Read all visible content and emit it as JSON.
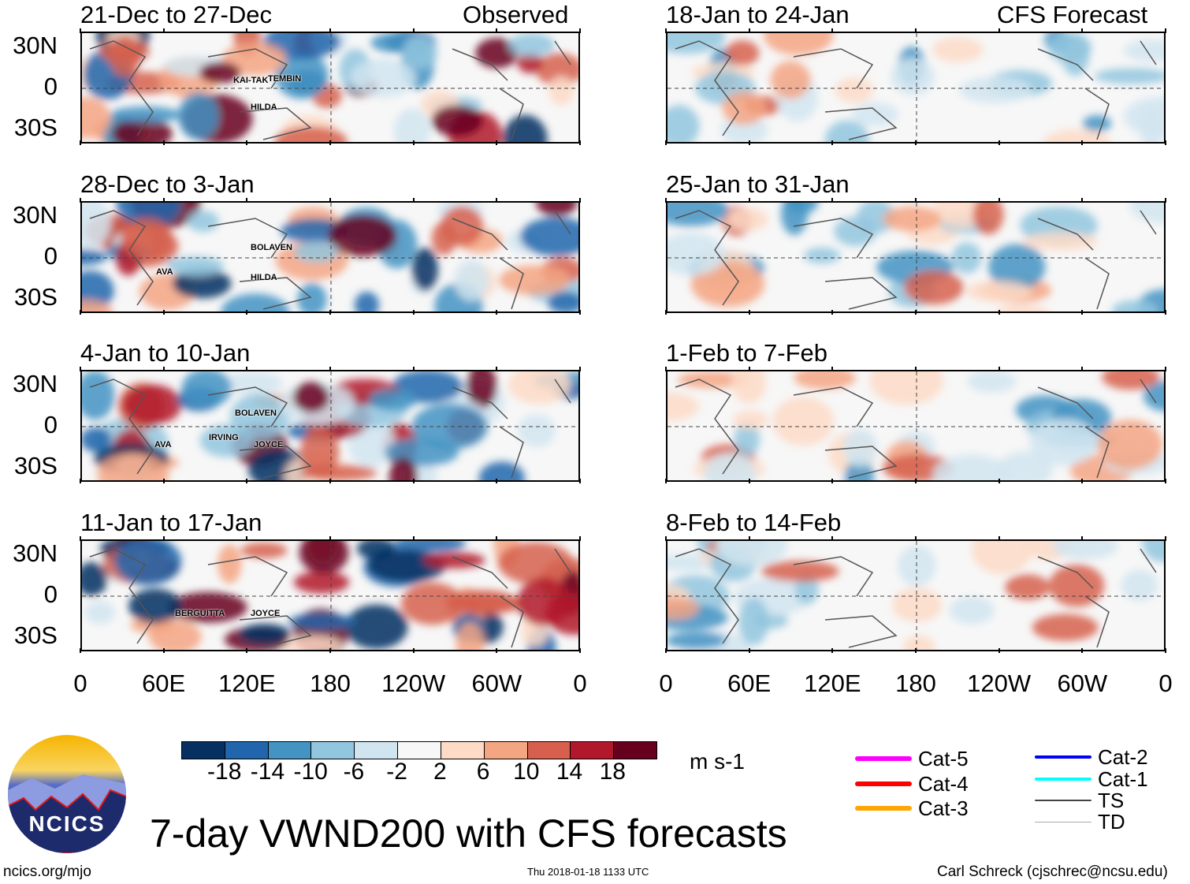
{
  "left_header": "Observed",
  "right_header": "CFS Forecast",
  "panels_left": [
    {
      "title": "21-Dec to 27-Dec",
      "storms": [
        "KAI-TAK",
        "TEMBIN",
        "HILDA"
      ]
    },
    {
      "title": "28-Dec to 3-Jan",
      "storms": [
        "BOLAVEN",
        "AVA",
        "HILDA"
      ]
    },
    {
      "title": "4-Jan to 10-Jan",
      "storms": [
        "BOLAVEN",
        "IRVING",
        "AVA",
        "JOYCE"
      ]
    },
    {
      "title": "11-Jan to 17-Jan",
      "storms": [
        "BERGUITTA",
        "JOYCE"
      ]
    }
  ],
  "panels_right": [
    {
      "title": "18-Jan to 24-Jan"
    },
    {
      "title": "25-Jan to 31-Jan"
    },
    {
      "title": "1-Feb to 7-Feb"
    },
    {
      "title": "8-Feb to 14-Feb"
    }
  ],
  "lat_labels": [
    "30N",
    "0",
    "30S"
  ],
  "lon_labels": [
    "0",
    "60E",
    "120E",
    "180",
    "120W",
    "60W",
    "0"
  ],
  "colorbar": {
    "labels": [
      "-18",
      "-14",
      "-10",
      "-6",
      "-2",
      "2",
      "6",
      "10",
      "14",
      "18"
    ],
    "colors": [
      "#053061",
      "#2166ac",
      "#4393c3",
      "#92c5de",
      "#d1e5f0",
      "#f7f7f7",
      "#fddbc7",
      "#f4a582",
      "#d6604d",
      "#b2182b",
      "#67001f"
    ],
    "units": "m s-1"
  },
  "legend": [
    {
      "label": "Cat-5",
      "color": "#ff00ff"
    },
    {
      "label": "Cat-4",
      "color": "#ff0000"
    },
    {
      "label": "Cat-3",
      "color": "#ffa500"
    },
    {
      "label": "Cat-2",
      "color": "#0000ff"
    },
    {
      "label": "Cat-1",
      "color": "#00ffff"
    },
    {
      "label": "TS",
      "color": "#444444"
    },
    {
      "label": "TD",
      "color": "#aaaaaa"
    }
  ],
  "title": "7-day VWND200 with CFS forecasts",
  "logo_text": "NCICS",
  "footer": {
    "url": "ncics.org/mjo",
    "timestamp": "Thu 2018-01-18 1133 UTC",
    "author": "Carl Schreck (cjschrec@ncsu.edu)"
  }
}
